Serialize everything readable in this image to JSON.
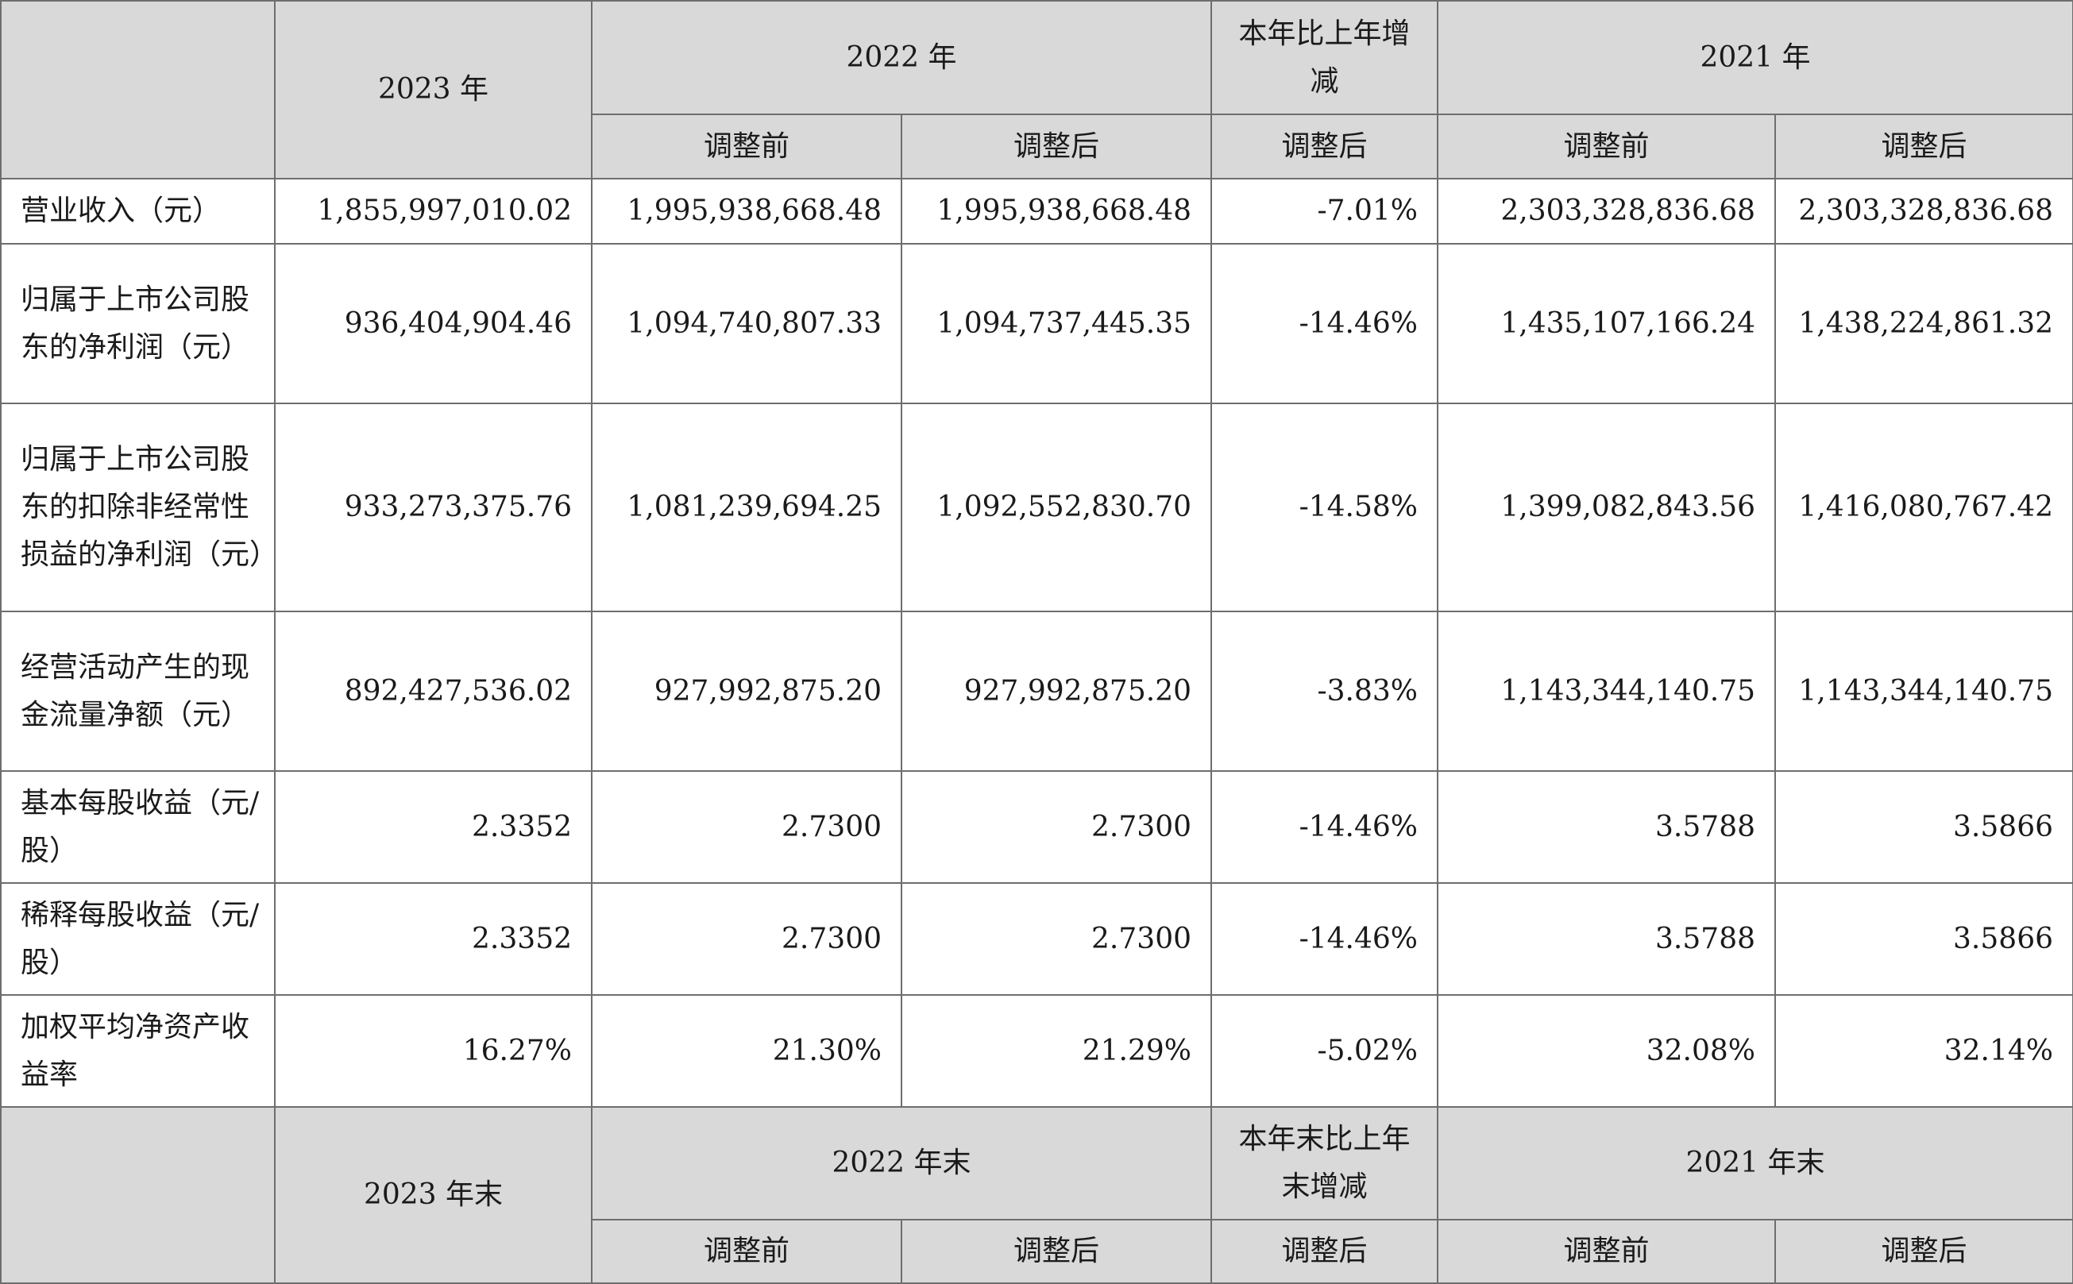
{
  "header": {
    "y2023": "2023 年",
    "y2022": "2022 年",
    "change": "本年比上年增减",
    "y2021": "2021 年",
    "before": "调整前",
    "after": "调整后"
  },
  "rows": [
    {
      "label": "营业收入（元）",
      "values": [
        "1,855,997,010.02",
        "1,995,938,668.48",
        "1,995,938,668.48",
        "-7.01%",
        "2,303,328,836.68",
        "2,303,328,836.68"
      ]
    },
    {
      "label": "归属于上市公司股东的净利润（元）",
      "values": [
        "936,404,904.46",
        "1,094,740,807.33",
        "1,094,737,445.35",
        "-14.46%",
        "1,435,107,166.24",
        "1,438,224,861.32"
      ]
    },
    {
      "label": "归属于上市公司股东的扣除非经常性损益的净利润（元）",
      "values": [
        "933,273,375.76",
        "1,081,239,694.25",
        "1,092,552,830.70",
        "-14.58%",
        "1,399,082,843.56",
        "1,416,080,767.42"
      ]
    },
    {
      "label": "经营活动产生的现金流量净额（元）",
      "values": [
        "892,427,536.02",
        "927,992,875.20",
        "927,992,875.20",
        "-3.83%",
        "1,143,344,140.75",
        "1,143,344,140.75"
      ]
    },
    {
      "label": "基本每股收益（元/股）",
      "values": [
        "2.3352",
        "2.7300",
        "2.7300",
        "-14.46%",
        "3.5788",
        "3.5866"
      ]
    },
    {
      "label": "稀释每股收益（元/股）",
      "values": [
        "2.3352",
        "2.7300",
        "2.7300",
        "-14.46%",
        "3.5788",
        "3.5866"
      ]
    },
    {
      "label": "加权平均净资产收益率",
      "values": [
        "16.27%",
        "21.30%",
        "21.29%",
        "-5.02%",
        "32.08%",
        "32.14%"
      ]
    }
  ],
  "header2": {
    "y2023": "2023 年末",
    "y2022": "2022 年末",
    "change": "本年末比上年末增减",
    "y2021": "2021 年末",
    "before": "调整前",
    "after": "调整后"
  }
}
